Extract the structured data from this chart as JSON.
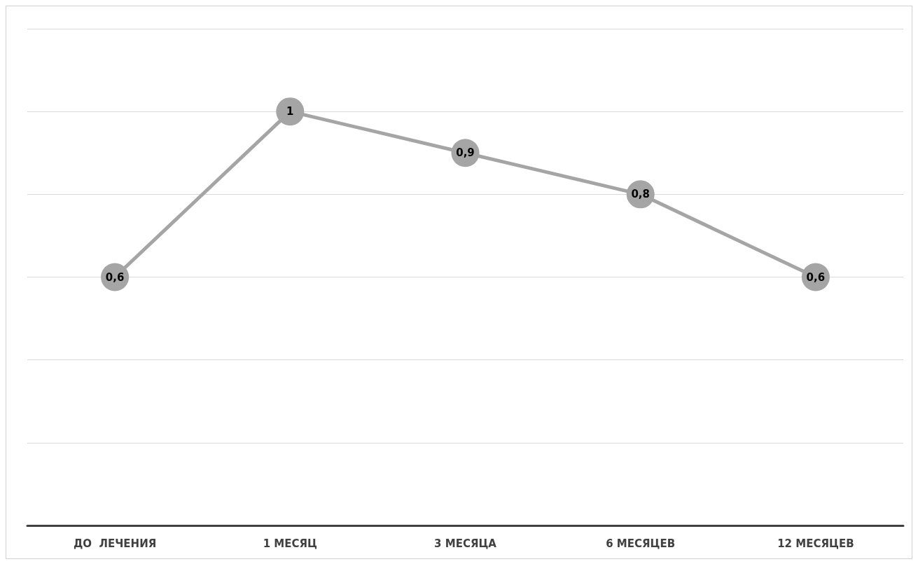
{
  "chart_data": {
    "type": "line",
    "categories": [
      "ДО  ЛЕЧЕНИЯ",
      "1 МЕСЯЦ",
      "3 МЕСЯЦА",
      "6 МЕСЯЦЕВ",
      "12 МЕСЯЦЕВ"
    ],
    "series": [
      {
        "color": "#a5a5a5",
        "values": [
          0.6,
          1,
          0.9,
          0.8,
          0.6
        ],
        "value_labels": [
          "0,6",
          "1",
          "0,9",
          "0,8",
          "0,6"
        ]
      }
    ],
    "ylim": [
      0,
      1.2
    ],
    "yticks": [
      {
        "value": 0,
        "label": null
      },
      {
        "value": 0.2,
        "label": null
      },
      {
        "value": 0.4,
        "label": null
      },
      {
        "value": 0.6,
        "label": null
      },
      {
        "value": 0.8,
        "label": null
      },
      {
        "value": 1,
        "label": null
      },
      {
        "value": 1.2,
        "label": null
      }
    ],
    "tick_labels": "x",
    "grid": "y",
    "marker": "circle",
    "line_style": "solid"
  }
}
